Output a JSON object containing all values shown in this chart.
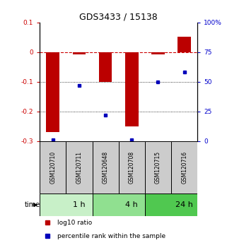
{
  "title": "GDS3433 / 15138",
  "samples": [
    "GSM120710",
    "GSM120711",
    "GSM120648",
    "GSM120708",
    "GSM120715",
    "GSM120716"
  ],
  "log10_ratio": [
    -0.27,
    -0.008,
    -0.1,
    -0.25,
    -0.008,
    0.052
  ],
  "percentile_rank": [
    1.0,
    47.0,
    22.0,
    1.0,
    50.0,
    58.0
  ],
  "ylim_left": [
    -0.3,
    0.1
  ],
  "ylim_right": [
    0,
    100
  ],
  "yticks_left": [
    0.1,
    0.0,
    -0.1,
    -0.2,
    -0.3
  ],
  "ytick_labels_left": [
    "0.1",
    "0",
    "-0.1",
    "-0.2",
    "-0.3"
  ],
  "yticks_right": [
    100,
    75,
    50,
    25,
    0
  ],
  "ytick_labels_right": [
    "100%",
    "75",
    "50",
    "25",
    "0"
  ],
  "time_groups": [
    {
      "label": "1 h",
      "span": [
        0,
        2
      ],
      "color": "#c8f0c8"
    },
    {
      "label": "4 h",
      "span": [
        2,
        4
      ],
      "color": "#90e090"
    },
    {
      "label": "24 h",
      "span": [
        4,
        6
      ],
      "color": "#50c850"
    }
  ],
  "bar_color": "#bb0000",
  "point_color": "#0000bb",
  "dashed_line_color": "#cc0000",
  "dotted_line_color": "#000000",
  "bg_color": "#ffffff",
  "legend_bar_label": "log10 ratio",
  "legend_point_label": "percentile rank within the sample",
  "xlabel": "time",
  "sample_box_color": "#cccccc",
  "sample_box_border": "#000000"
}
